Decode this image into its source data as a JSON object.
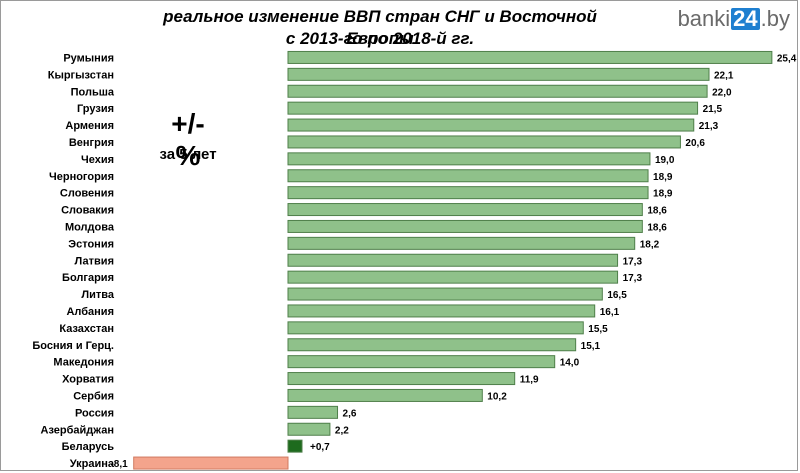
{
  "header": {
    "title_line1": "реальное изменение ВВП стран СНГ и Восточной Европы",
    "title_line2": "с 2013-го по 2018-й гг.",
    "brand_prefix": "banki",
    "brand_box": "24",
    "brand_suffix": ".by"
  },
  "annotation": {
    "big": "+/- %",
    "small": "за 5 лет"
  },
  "colors": {
    "positive": "#8fc18a",
    "positive_border": "#4f7f4a",
    "highlight": "#1e6b1e",
    "negative": "#f4a48c",
    "negative_border": "#d07a60"
  },
  "chart_data": {
    "type": "bar",
    "orientation": "horizontal",
    "categories": [
      "Румыния",
      "Кыргызстан",
      "Польша",
      "Грузия",
      "Армения",
      "Венгрия",
      "Чехия",
      "Черногория",
      "Словения",
      "Словакия",
      "Молдова",
      "Эстония",
      "Латвия",
      "Болгария",
      "Литва",
      "Албания",
      "Казахстан",
      "Босния и Герц.",
      "Македония",
      "Хорватия",
      "Сербия",
      "Россия",
      "Азербайджан",
      "Беларусь",
      "Украина"
    ],
    "values": [
      25.4,
      22.1,
      22.0,
      21.5,
      21.3,
      20.6,
      19.0,
      18.9,
      18.9,
      18.6,
      18.6,
      18.2,
      17.3,
      17.3,
      16.5,
      16.1,
      15.5,
      15.1,
      14.0,
      11.9,
      10.2,
      2.6,
      2.2,
      0.7,
      -8.1
    ],
    "value_labels": [
      "25,4",
      "22,1",
      "22,0",
      "21,5",
      "21,3",
      "20,6",
      "19,0",
      "18,9",
      "18,9",
      "18,6",
      "18,6",
      "18,2",
      "17,3",
      "17,3",
      "16,5",
      "16,1",
      "15,5",
      "15,1",
      "14,0",
      "11,9",
      "10,2",
      "2,6",
      "2,2",
      "+0,7",
      "-8,1"
    ],
    "highlight": [
      "Беларусь"
    ],
    "xlim": [
      -8.1,
      25.4
    ],
    "grid": false
  }
}
